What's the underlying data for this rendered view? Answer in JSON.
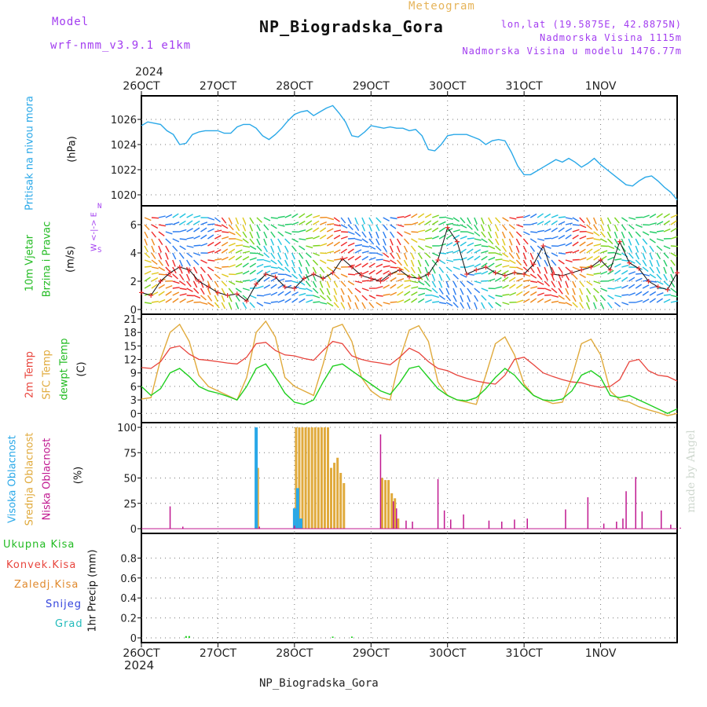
{
  "header": {
    "model_label": "Model",
    "model_name": "wrf-nmm_v3.9.1  e1km",
    "meteogram_label": "Meteogram",
    "station": "NP_Biogradska_Gora",
    "lonlat": "lon,lat (19.5875E, 42.8875N)",
    "elevation": "Nadmorska Visina 1115m",
    "elevation_model": "Nadmorska Visina u modelu 1476.77m",
    "year_top": "2024",
    "year_bottom": "2024",
    "footer_station": "NP_Biogradska_Gora",
    "credit": "made by Angel"
  },
  "axis_dates": [
    "26OCT",
    "27OCT",
    "28OCT",
    "29OCT",
    "30OCT",
    "31OCT",
    "1NOV"
  ],
  "panel_labels": {
    "pressure": {
      "name": "Pritisak na nivou mora",
      "unit": "(hPa)"
    },
    "wind": {
      "name1": "10m Vjetar",
      "name2": "Brzina i Pravac",
      "unit": "(m/s)",
      "compass": "W <-|-> E",
      "compass_ns": "N",
      "compass_s": "S"
    },
    "temp": {
      "t2m": "2m Temp",
      "sfc": "SFC Temp",
      "dew": "dewpt Temp",
      "unit": "(C)"
    },
    "cloud": {
      "high": "Visoka Oblacnost",
      "mid": "Srednja Oblacnost",
      "low": "Niska Oblacnost",
      "unit": "(%)"
    },
    "precip": {
      "total": "Ukupna Kisa",
      "conv": "Konvek.Kisa",
      "frz": "Zaledj.Kisa",
      "snow": "Snijeg",
      "grad": "Grad",
      "unit": "1hr Precip (mm)"
    }
  },
  "colors": {
    "pressure": "#29a8e8",
    "t2m": "#e8443c",
    "sfc": "#e0aa3c",
    "dew": "#1fcf1f",
    "cloud_high": "#29a8e8",
    "cloud_mid": "#e0aa3c",
    "cloud_low": "#c01890",
    "label_green": "#22bb22",
    "label_red": "#e8443c",
    "label_orange": "#e0892c",
    "label_blue": "#3344dd",
    "label_cyan": "#22bbbb",
    "label_purple": "#a23cf0"
  },
  "chart_data": [
    {
      "type": "line",
      "panel": "pressure",
      "x_unit": "hours from 26OCT 00UTC",
      "ylim": [
        1019.5,
        1027.5
      ],
      "yticks": [
        1020,
        1022,
        1024,
        1026
      ],
      "grid": true,
      "series": [
        {
          "x": [
            0,
            2,
            4,
            6,
            8,
            10,
            12,
            14,
            16,
            18,
            20,
            22,
            24,
            26,
            28,
            30,
            32,
            34,
            36,
            38,
            40,
            42,
            44,
            46,
            48,
            50,
            52,
            54,
            56,
            58,
            60,
            62,
            64,
            66,
            68,
            70,
            72,
            74,
            76,
            78,
            80,
            82,
            84,
            86,
            88,
            90,
            92,
            94,
            96,
            98,
            100,
            102,
            104,
            106,
            108,
            110,
            112,
            114,
            116,
            118,
            120,
            122,
            124,
            126,
            128,
            130,
            132,
            134,
            136,
            138,
            140,
            142,
            144,
            146,
            148,
            150,
            152,
            154,
            156,
            158,
            160,
            162,
            164,
            166,
            168
          ],
          "values": [
            1025.5,
            1025.8,
            1025.7,
            1025.6,
            1025.1,
            1024.8,
            1024.0,
            1024.1,
            1024.8,
            1025.0,
            1025.1,
            1025.1,
            1025.1,
            1024.9,
            1024.9,
            1025.4,
            1025.6,
            1025.6,
            1025.3,
            1024.7,
            1024.4,
            1024.8,
            1025.3,
            1025.9,
            1026.4,
            1026.6,
            1026.7,
            1026.3,
            1026.6,
            1026.9,
            1027.1,
            1026.5,
            1025.8,
            1024.7,
            1024.6,
            1025.0,
            1025.5,
            1025.4,
            1025.3,
            1025.4,
            1025.3,
            1025.3,
            1025.1,
            1025.2,
            1024.7,
            1023.6,
            1023.5,
            1024.0,
            1024.7,
            1024.8,
            1024.8,
            1024.8,
            1024.6,
            1024.4,
            1024.0,
            1024.3,
            1024.4,
            1024.3,
            1023.4,
            1022.3,
            1021.6,
            1021.6,
            1021.9,
            1022.2,
            1022.5,
            1022.8,
            1022.6,
            1022.9,
            1022.6,
            1022.2,
            1022.5,
            1022.9,
            1022.4,
            1022.0,
            1021.6,
            1021.2,
            1020.8,
            1020.7,
            1021.1,
            1021.4,
            1021.5,
            1021.1,
            1020.6,
            1020.2,
            1019.6
          ]
        }
      ]
    },
    {
      "type": "line",
      "panel": "wind_speed",
      "x_unit": "hours from 26OCT 00UTC",
      "ylim": [
        0,
        7
      ],
      "yticks": [
        0,
        2,
        4,
        6
      ],
      "grid": true,
      "series": [
        {
          "x": [
            0,
            3,
            6,
            9,
            12,
            15,
            18,
            21,
            24,
            27,
            30,
            33,
            36,
            39,
            42,
            45,
            48,
            51,
            54,
            57,
            60,
            63,
            66,
            69,
            72,
            75,
            78,
            81,
            84,
            87,
            90,
            93,
            96,
            99,
            102,
            105,
            108,
            111,
            114,
            117,
            120,
            123,
            126,
            129,
            132,
            135,
            138,
            141,
            144,
            147,
            150,
            153,
            156,
            159,
            162,
            165,
            168
          ],
          "values": [
            1.2,
            1.0,
            2.0,
            2.6,
            3.0,
            2.8,
            2.0,
            1.6,
            1.2,
            1.0,
            1.1,
            0.6,
            1.8,
            2.5,
            2.3,
            1.6,
            1.5,
            2.2,
            2.5,
            2.2,
            2.6,
            3.6,
            3.0,
            2.4,
            2.2,
            2.0,
            2.5,
            2.8,
            2.3,
            2.2,
            2.5,
            3.5,
            5.8,
            4.8,
            2.5,
            2.8,
            3.0,
            2.6,
            2.4,
            2.6,
            2.5,
            3.2,
            4.5,
            2.5,
            2.4,
            2.6,
            2.8,
            3.0,
            3.5,
            2.8,
            4.8,
            3.3,
            2.9,
            2.0,
            1.6,
            1.4,
            2.6
          ]
        }
      ]
    },
    {
      "type": "line",
      "panel": "temperature",
      "x_unit": "hours from 26OCT 00UTC",
      "ylim": [
        -1,
        21
      ],
      "yticks": [
        0,
        3,
        6,
        9,
        12,
        15,
        18,
        21
      ],
      "grid": true,
      "series": [
        {
          "name": "2m Temp",
          "x": [
            0,
            3,
            6,
            9,
            12,
            15,
            18,
            21,
            24,
            27,
            30,
            33,
            36,
            39,
            42,
            45,
            48,
            51,
            54,
            57,
            60,
            63,
            66,
            69,
            72,
            75,
            78,
            81,
            84,
            87,
            90,
            93,
            96,
            99,
            102,
            105,
            108,
            111,
            114,
            117,
            120,
            123,
            126,
            129,
            132,
            135,
            138,
            141,
            144,
            147,
            150,
            153,
            156,
            159,
            162,
            165,
            168
          ],
          "values": [
            10.2,
            10.0,
            11.5,
            14.5,
            15.0,
            13.2,
            12.0,
            11.8,
            11.5,
            11.2,
            11.0,
            12.5,
            15.5,
            15.8,
            14.0,
            13.0,
            12.8,
            12.2,
            11.8,
            14.0,
            16.0,
            15.5,
            12.8,
            12.0,
            11.5,
            11.2,
            10.8,
            12.5,
            14.5,
            13.5,
            11.5,
            10.0,
            9.5,
            8.5,
            7.8,
            7.2,
            6.8,
            6.5,
            8.5,
            12.0,
            12.5,
            10.8,
            9.0,
            8.2,
            7.5,
            7.0,
            6.8,
            6.2,
            5.8,
            6.0,
            7.5,
            11.5,
            12.0,
            9.5,
            8.5,
            8.2,
            7.2
          ]
        },
        {
          "name": "SFC Temp",
          "x": [
            0,
            3,
            6,
            9,
            12,
            15,
            18,
            21,
            24,
            27,
            30,
            33,
            36,
            39,
            42,
            45,
            48,
            51,
            54,
            57,
            60,
            63,
            66,
            69,
            72,
            75,
            78,
            81,
            84,
            87,
            90,
            93,
            96,
            99,
            102,
            105,
            108,
            111,
            114,
            117,
            120,
            123,
            126,
            129,
            132,
            135,
            138,
            141,
            144,
            147,
            150,
            153,
            156,
            159,
            162,
            165,
            168
          ],
          "values": [
            3.2,
            3.5,
            12.0,
            18.0,
            19.8,
            16.0,
            8.5,
            6.0,
            5.0,
            4.0,
            3.0,
            8.0,
            18.0,
            20.5,
            17.0,
            8.0,
            6.0,
            5.0,
            4.0,
            11.0,
            19.0,
            19.8,
            16.0,
            8.0,
            5.0,
            3.5,
            3.0,
            12.0,
            18.5,
            19.5,
            16.0,
            7.0,
            4.0,
            3.0,
            2.5,
            2.0,
            8.5,
            15.5,
            17.0,
            13.0,
            6.5,
            4.0,
            3.0,
            2.2,
            2.5,
            8.0,
            15.5,
            16.5,
            13.0,
            5.0,
            3.0,
            2.5,
            1.5,
            0.8,
            0.2,
            -0.5,
            0.0
          ]
        },
        {
          "name": "dewpt Temp",
          "x": [
            0,
            3,
            6,
            9,
            12,
            15,
            18,
            21,
            24,
            27,
            30,
            33,
            36,
            39,
            42,
            45,
            48,
            51,
            54,
            57,
            60,
            63,
            66,
            69,
            72,
            75,
            78,
            81,
            84,
            87,
            90,
            93,
            96,
            99,
            102,
            105,
            108,
            111,
            114,
            117,
            120,
            123,
            126,
            129,
            132,
            135,
            138,
            141,
            144,
            147,
            150,
            153,
            156,
            159,
            162,
            165,
            168
          ],
          "values": [
            6.0,
            4.0,
            5.5,
            9.0,
            10.0,
            8.2,
            6.0,
            5.0,
            4.5,
            3.8,
            3.0,
            6.0,
            10.0,
            11.0,
            8.0,
            4.5,
            2.5,
            2.0,
            3.0,
            7.0,
            10.5,
            11.0,
            9.5,
            8.0,
            6.5,
            5.0,
            4.2,
            6.8,
            10.0,
            10.5,
            8.0,
            5.5,
            4.0,
            3.0,
            2.8,
            3.5,
            5.5,
            8.0,
            10.0,
            8.5,
            6.0,
            4.0,
            3.0,
            2.8,
            3.2,
            5.0,
            8.5,
            9.5,
            8.0,
            4.0,
            3.5,
            4.0,
            3.0,
            2.0,
            1.0,
            0.0,
            1.0
          ]
        }
      ]
    },
    {
      "type": "bar",
      "panel": "cloud",
      "x_unit": "hours from 26OCT 00UTC",
      "ylim": [
        0,
        100
      ],
      "yticks": [
        0,
        25,
        50,
        75,
        100
      ],
      "grid": true,
      "series": [
        {
          "name": "Visoka Oblacnost",
          "x": [
            36,
            48,
            49,
            50
          ],
          "values": [
            100,
            20,
            40,
            10
          ]
        },
        {
          "name": "Srednja Oblacnost",
          "x": [
            36,
            48,
            49,
            50,
            51,
            52,
            53,
            54,
            55,
            56,
            57,
            58,
            59,
            60,
            61,
            62,
            63,
            75,
            76,
            77,
            78,
            79,
            80
          ],
          "values": [
            60,
            100,
            100,
            100,
            100,
            100,
            100,
            100,
            100,
            100,
            100,
            100,
            60,
            65,
            70,
            55,
            45,
            50,
            48,
            48,
            35,
            30,
            10
          ]
        },
        {
          "name": "Niska Oblacnost",
          "x": [
            8,
            12,
            36,
            47,
            74,
            78,
            79,
            82,
            84,
            92,
            94,
            96,
            100,
            108,
            112,
            116,
            120,
            132,
            139,
            144,
            148,
            150,
            151,
            154,
            156,
            162,
            165,
            168
          ],
          "values": [
            22,
            2,
            2,
            3,
            93,
            27,
            20,
            8,
            7,
            49,
            18,
            9,
            14,
            8,
            7,
            9,
            10,
            19,
            31,
            5,
            7,
            10,
            37,
            51,
            17,
            18,
            4,
            1
          ]
        }
      ]
    },
    {
      "type": "bar",
      "panel": "precip",
      "x_unit": "hours from 26OCT 00UTC",
      "ylim": [
        0,
        1.0
      ],
      "yticks": [
        0,
        0.2,
        0.4,
        0.6,
        0.8
      ],
      "grid": true,
      "series": [
        {
          "name": "Ukupna Kisa",
          "x": [
            14,
            15,
            60,
            66
          ],
          "values": [
            0.01,
            0.01,
            0.005,
            0.005
          ]
        }
      ]
    }
  ]
}
